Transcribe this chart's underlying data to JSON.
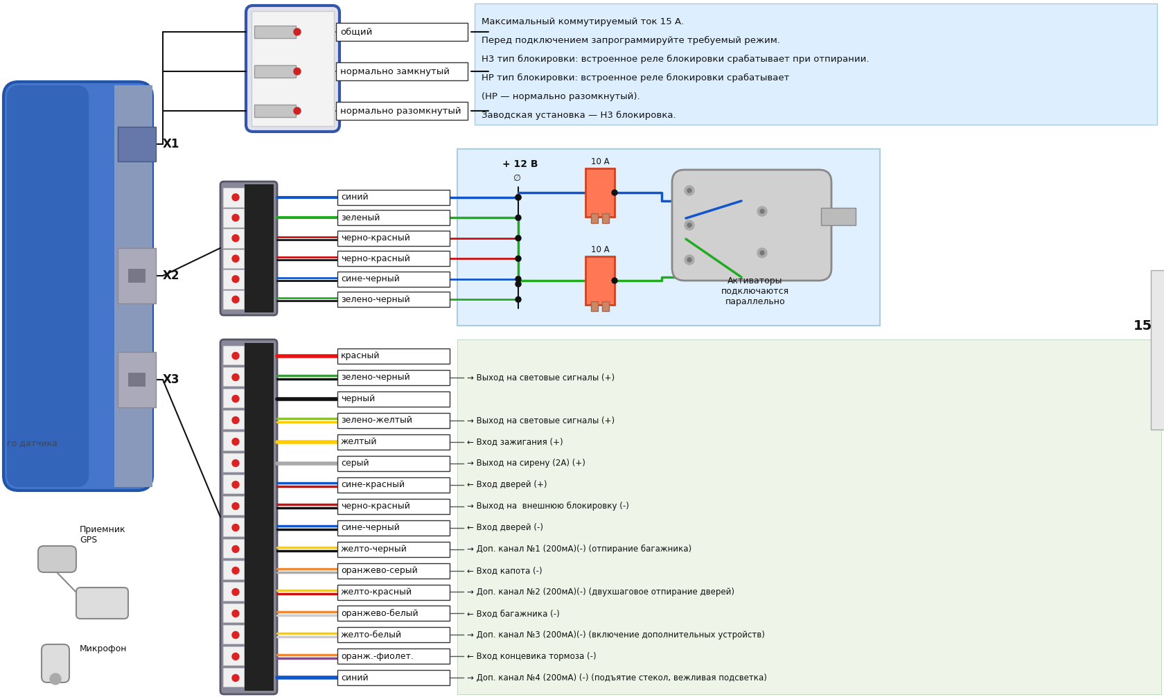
{
  "bg_color": "#ffffff",
  "info_lines": [
    "Максимальный коммутируемый ток 15 А.",
    "Перед подключением запрограммируйте требуемый режим.",
    "Н3 тип блокировки: встроенное реле блокировки срабатывает при отпирании.",
    "НР тип блокировки: встроенное реле блокировки срабатывает",
    "(НР — нормально разомкнутый).",
    "Заводская установка — Н3 блокировка."
  ],
  "relay_labels": [
    "общий",
    "нормально замкнутый",
    "нормально разомкнутый"
  ],
  "x2_wires": [
    {
      "label": "синий",
      "color": "#1155cc",
      "color2": null
    },
    {
      "label": "зеленый",
      "color": "#22aa22",
      "color2": null
    },
    {
      "label": "черно-красный",
      "color": "#cc1111",
      "color2": "#111111"
    },
    {
      "label": "черно-красный",
      "color": "#cc1111",
      "color2": "#111111"
    },
    {
      "label": "сине-черный",
      "color": "#1155cc",
      "color2": "#111111"
    },
    {
      "label": "зелено-черный",
      "color": "#22aa22",
      "color2": "#111111"
    }
  ],
  "x3_wires": [
    {
      "label": "красный",
      "color": "#ee1111",
      "color2": null,
      "desc": ""
    },
    {
      "label": "зелено-черный",
      "color": "#22aa22",
      "color2": "#111111",
      "desc": "→ Выход на световые сигналы (+)"
    },
    {
      "label": "черный",
      "color": "#111111",
      "color2": null,
      "desc": ""
    },
    {
      "label": "зелено-желтый",
      "color": "#88cc00",
      "color2": "#ffcc00",
      "desc": "→ Выход на световые сигналы (+)"
    },
    {
      "label": "желтый",
      "color": "#ffcc00",
      "color2": null,
      "desc": "← Вход зажигания (+)"
    },
    {
      "label": "серый",
      "color": "#aaaaaa",
      "color2": null,
      "desc": "→ Выход на сирену (2А) (+)"
    },
    {
      "label": "сине-красный",
      "color": "#1155cc",
      "color2": "#cc1111",
      "desc": "← Вход дверей (+)"
    },
    {
      "label": "черно-красный",
      "color": "#cc1111",
      "color2": "#111111",
      "desc": "→ Выход на  внешнюю блокировку (-)"
    },
    {
      "label": "сине-черный",
      "color": "#1155cc",
      "color2": "#111111",
      "desc": "← Вход дверей (-)"
    },
    {
      "label": "желто-черный",
      "color": "#ffcc00",
      "color2": "#111111",
      "desc": "→ Доп. канал №1 (200мА)(-) (отпирание багажника)"
    },
    {
      "label": "оранжево-серый",
      "color": "#ee8833",
      "color2": "#aaaaaa",
      "desc": "← Вход капота (-)"
    },
    {
      "label": "желто-красный",
      "color": "#ffcc00",
      "color2": "#cc1111",
      "desc": "→ Доп. канал №2 (200мА)(-) (двухшаговое отпирание дверей)"
    },
    {
      "label": "оранжево-белый",
      "color": "#ee8833",
      "color2": "#ffffff",
      "desc": "← Вход багажника (-)"
    },
    {
      "label": "желто-белый",
      "color": "#ffcc00",
      "color2": "#ffffff",
      "desc": "→ Доп. канал №3 (200мА)(-) (включение дополнительных устройств)"
    },
    {
      "label": "оранж.-фиолет.",
      "color": "#ee8833",
      "color2": "#884499",
      "desc": "← Вход концевика тормоза (-)"
    },
    {
      "label": "синий",
      "color": "#1155cc",
      "color2": null,
      "desc": "→ Доп. канал №4 (200мА) (-) (подъятие стекол, вежливая подсветка)"
    }
  ],
  "activator_label": "Активаторы\nподключаются\nпараллельно",
  "plus12v": "+ 12 В",
  "fuse_10a": "10 А",
  "gps_label": "Приемник\nGPS",
  "mic_label": "Микрофон",
  "sensor_label": "го датчика",
  "num15": "15"
}
